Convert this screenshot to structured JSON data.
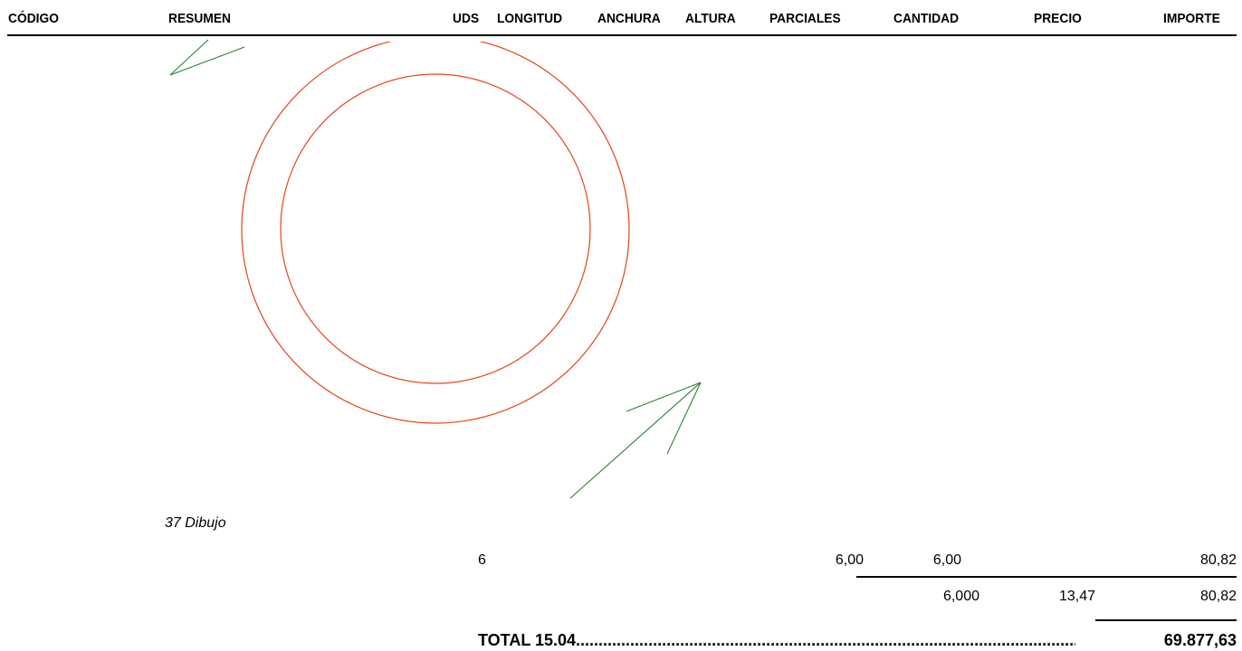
{
  "header": {
    "codigo": "CÓDIGO",
    "resumen": "RESUMEN",
    "uds": "UDS",
    "longitud": "LONGITUD",
    "anchura": "ANCHURA",
    "altura": "ALTURA",
    "parciales": "PARCIALES",
    "cantidad": "CANTIDAD",
    "precio": "PRECIO",
    "importe": "IMPORTE"
  },
  "drawing": {
    "caption": "37 Dibujo",
    "circle_color": "#e8441a",
    "arrow_color": "#2e7d32"
  },
  "measurement_line": {
    "uds": "6",
    "parciales": "6,00",
    "cantidad": "6,00",
    "importe": "80,82"
  },
  "subtotal_line": {
    "cantidad": "6,000",
    "precio": "13,47",
    "importe": "80,82"
  },
  "total": {
    "label": "TOTAL 15.04",
    "leader": "..................................................................................................................",
    "value": "69.877,63"
  }
}
